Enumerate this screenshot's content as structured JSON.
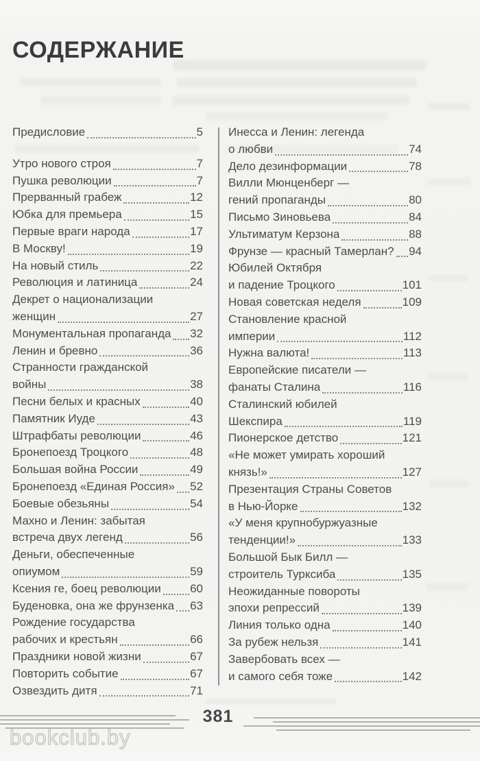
{
  "page": {
    "title": "СОДЕРЖАНИЕ",
    "page_number": "381",
    "watermark": "bookclub.by",
    "colors": {
      "background": "#f2f2ef",
      "title_text": "#3b3b3b",
      "entry_text": "#4c4c4c",
      "leader_dots": "#868686",
      "footer_rules": "#b2b2b0",
      "watermark_text": "#c3c3c1"
    }
  },
  "toc": {
    "left_column": [
      {
        "text": "Предисловие",
        "page": "5",
        "gap_after": true
      },
      {
        "text": "Утро нового строя",
        "page": "7"
      },
      {
        "text": "Пушка революции",
        "page": "7"
      },
      {
        "text": "Прерванный грабеж",
        "page": "12"
      },
      {
        "text": "Юбка для премьера",
        "page": "15"
      },
      {
        "text": "Первые враги народа",
        "page": "17"
      },
      {
        "text": "В Москву!",
        "page": "19"
      },
      {
        "text": "На новый стиль",
        "page": "22"
      },
      {
        "text": "Революция и латиница",
        "page": "24"
      },
      {
        "text": "Декрет о национализации",
        "page": null
      },
      {
        "text": "женщин",
        "page": "27"
      },
      {
        "text": "Монументальная пропаганда",
        "page": "32"
      },
      {
        "text": "Ленин и бревно",
        "page": "36"
      },
      {
        "text": "Странности гражданской",
        "page": null
      },
      {
        "text": "войны",
        "page": "38"
      },
      {
        "text": "Песни белых и красных",
        "page": "40"
      },
      {
        "text": "Памятник Иуде",
        "page": "43"
      },
      {
        "text": "Штрафбаты революции",
        "page": "46"
      },
      {
        "text": "Бронепоезд Троцкого",
        "page": "48"
      },
      {
        "text": "Большая война России",
        "page": "49"
      },
      {
        "text": "Бронепоезд «Единая Россия»",
        "page": "52"
      },
      {
        "text": "Боевые обезьяны",
        "page": "54"
      },
      {
        "text": "Махно и Ленин: забытая",
        "page": null
      },
      {
        "text": "встреча двух легенд",
        "page": "56"
      },
      {
        "text": "Деньги, обеспеченные",
        "page": null
      },
      {
        "text": "опиумом",
        "page": "59"
      },
      {
        "text": "Ксения ге, боец революции",
        "page": "60"
      },
      {
        "text": "Буденовка, она же фрунзенка",
        "page": "63"
      },
      {
        "text": "Рождение государства",
        "page": null
      },
      {
        "text": "рабочих и крестьян",
        "page": "66"
      },
      {
        "text": "Праздники новой жизни",
        "page": "67"
      },
      {
        "text": "Повторить событие",
        "page": "67"
      },
      {
        "text": "Озвездить дитя",
        "page": "71"
      }
    ],
    "right_column": [
      {
        "text": "Инесса и Ленин: легенда",
        "page": null
      },
      {
        "text": "о любви",
        "page": "74"
      },
      {
        "text": "Дело дезинформации",
        "page": "78"
      },
      {
        "text": "Вилли Мюнценберг —",
        "page": null
      },
      {
        "text": "гений пропаганды",
        "page": "80"
      },
      {
        "text": "Письмо Зиновьева",
        "page": "84"
      },
      {
        "text": "Ультиматум Керзона",
        "page": "88"
      },
      {
        "text": "Фрунзе — красный Тамерлан?",
        "page": "94"
      },
      {
        "text": "Юбилей Октября",
        "page": null
      },
      {
        "text": "и падение Троцкого",
        "page": "101"
      },
      {
        "text": "Новая советская неделя",
        "page": "109"
      },
      {
        "text": "Становление красной",
        "page": null
      },
      {
        "text": "империи",
        "page": "112"
      },
      {
        "text": "Нужна валюта!",
        "page": "113"
      },
      {
        "text": "Европейские писатели —",
        "page": null
      },
      {
        "text": "фанаты Сталина",
        "page": "116"
      },
      {
        "text": "Сталинский юбилей",
        "page": null
      },
      {
        "text": "Шекспира",
        "page": "119"
      },
      {
        "text": "Пионерское детство",
        "page": "121"
      },
      {
        "text": "«Не может умирать хороший",
        "page": null
      },
      {
        "text": "князь!»",
        "page": "127"
      },
      {
        "text": "Презентация Страны Советов",
        "page": null
      },
      {
        "text": "в Нью-Йорке",
        "page": "132"
      },
      {
        "text": "«У меня крупнобуржуазные",
        "page": null
      },
      {
        "text": "тенденции!»",
        "page": "133"
      },
      {
        "text": "Большой Бык Билл —",
        "page": null
      },
      {
        "text": "строитель Турксиба",
        "page": "135"
      },
      {
        "text": "Неожиданные повороты",
        "page": null
      },
      {
        "text": "эпохи репрессий",
        "page": "139"
      },
      {
        "text": "Линия только одна",
        "page": "140"
      },
      {
        "text": "За рубеж нельзя",
        "page": "141"
      },
      {
        "text": "Завербовать всех —",
        "page": null
      },
      {
        "text": "и самого себя тоже",
        "page": "142"
      }
    ]
  }
}
